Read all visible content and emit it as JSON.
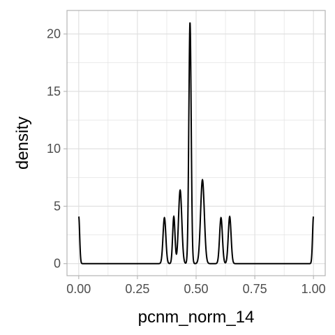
{
  "chart_data": {
    "type": "line",
    "title": "",
    "xlabel": "pcnm_norm_14",
    "ylabel": "density",
    "xlim": [
      -0.05,
      1.05
    ],
    "ylim": [
      -1.05,
      22.05
    ],
    "x_ticks": [
      0.0,
      0.25,
      0.5,
      0.75,
      1.0
    ],
    "x_tick_labels": [
      "0.00",
      "0.25",
      "0.50",
      "0.75",
      "1.00"
    ],
    "y_ticks": [
      0,
      5,
      10,
      15,
      20
    ],
    "y_tick_labels": [
      "0",
      "5",
      "10",
      "15",
      "20"
    ],
    "grid": true,
    "legend": "none",
    "line_color": "#000000",
    "grid_color": "#dedede",
    "border_color": "#b3b3b3",
    "x_range": [
      0.0,
      1.0
    ],
    "series": [
      {
        "peaks": [
          {
            "center": 0.0,
            "height": 4.1,
            "width": 0.004
          },
          {
            "center": 0.365,
            "height": 4.0,
            "width": 0.006
          },
          {
            "center": 0.405,
            "height": 4.1,
            "width": 0.005
          },
          {
            "center": 0.432,
            "height": 6.4,
            "width": 0.007
          },
          {
            "center": 0.474,
            "height": 21.0,
            "width": 0.005
          },
          {
            "center": 0.527,
            "height": 7.3,
            "width": 0.008
          },
          {
            "center": 0.606,
            "height": 4.0,
            "width": 0.006
          },
          {
            "center": 0.643,
            "height": 4.1,
            "width": 0.006
          },
          {
            "center": 1.0,
            "height": 4.1,
            "width": 0.004
          }
        ]
      }
    ]
  }
}
